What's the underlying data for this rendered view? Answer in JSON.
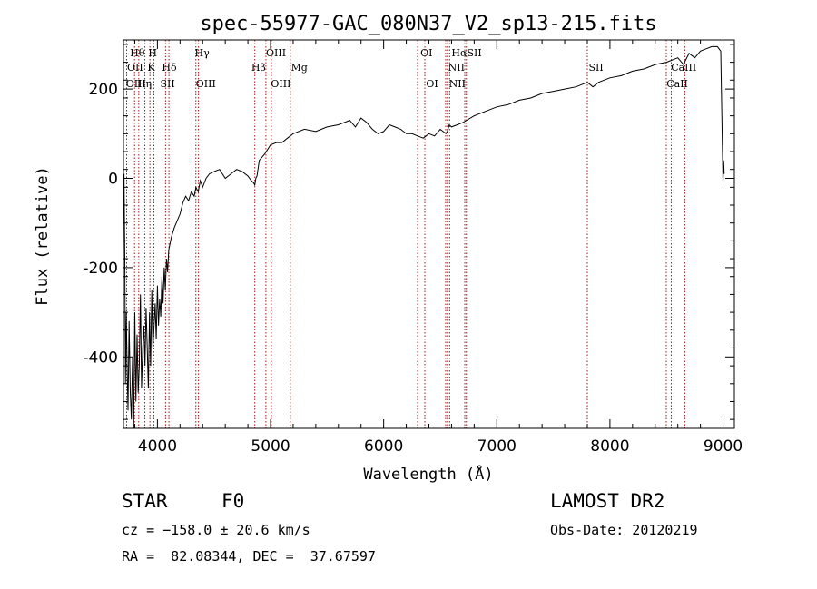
{
  "chart_data": {
    "type": "line",
    "title": "spec-55977-GAC_080N37_V2_sp13-215.fits",
    "xlabel": "Wavelength (Å)",
    "ylabel": "Flux (relative)",
    "xlim": [
      3700,
      9100
    ],
    "ylim": [
      -560,
      310
    ],
    "x_ticks": [
      "4000",
      "5000",
      "6000",
      "7000",
      "8000",
      "9000"
    ],
    "y_ticks": [
      "-400",
      "-200",
      "0",
      "200"
    ],
    "grid": false,
    "series": [
      {
        "x": [
          3700,
          3705,
          3712,
          3718,
          3725,
          3732,
          3740,
          3750,
          3760,
          3770,
          3780,
          3790,
          3800,
          3810,
          3820,
          3830,
          3840,
          3850,
          3860,
          3870,
          3880,
          3890,
          3900,
          3910,
          3920,
          3930,
          3940,
          3950,
          3960,
          3970,
          3980,
          3990,
          4000,
          4010,
          4020,
          4030,
          4040,
          4050,
          4060,
          4070,
          4080,
          4090,
          4100,
          4125,
          4150,
          4175,
          4200,
          4225,
          4250,
          4275,
          4300,
          4325,
          4340,
          4360,
          4380,
          4400,
          4430,
          4460,
          4500,
          4550,
          4600,
          4650,
          4700,
          4750,
          4800,
          4830,
          4850,
          4861,
          4870,
          4880,
          4900,
          4950,
          5000,
          5050,
          5100,
          5150,
          5200,
          5300,
          5400,
          5500,
          5600,
          5700,
          5750,
          5800,
          5850,
          5900,
          5950,
          6000,
          6050,
          6100,
          6150,
          6200,
          6250,
          6300,
          6350,
          6400,
          6450,
          6500,
          6550,
          6563,
          6580,
          6600,
          6650,
          6700,
          6800,
          6900,
          7000,
          7100,
          7200,
          7300,
          7400,
          7500,
          7600,
          7700,
          7800,
          7850,
          7900,
          8000,
          8100,
          8200,
          8300,
          8400,
          8500,
          8600,
          8650,
          8700,
          8750,
          8800,
          8850,
          8900,
          8950,
          8980,
          9000,
          9005,
          9010
        ],
        "y": [
          -30,
          10,
          -180,
          -460,
          -300,
          -420,
          -520,
          -320,
          -480,
          -540,
          -400,
          -560,
          -300,
          -500,
          -350,
          -480,
          -420,
          -260,
          -470,
          -380,
          -330,
          -420,
          -290,
          -380,
          -470,
          -300,
          -420,
          -250,
          -380,
          -330,
          -280,
          -360,
          -240,
          -330,
          -270,
          -310,
          -220,
          -280,
          -200,
          -250,
          -180,
          -210,
          -160,
          -130,
          -110,
          -95,
          -80,
          -55,
          -40,
          -50,
          -30,
          -40,
          -20,
          -30,
          -5,
          -20,
          0,
          10,
          15,
          20,
          0,
          10,
          20,
          15,
          5,
          -5,
          -10,
          -15,
          0,
          5,
          40,
          55,
          75,
          80,
          80,
          90,
          100,
          110,
          105,
          115,
          120,
          130,
          115,
          135,
          125,
          110,
          100,
          105,
          120,
          115,
          110,
          100,
          100,
          95,
          90,
          100,
          95,
          110,
          100,
          105,
          120,
          115,
          120,
          125,
          140,
          150,
          160,
          165,
          175,
          180,
          190,
          195,
          200,
          205,
          215,
          205,
          215,
          225,
          230,
          240,
          245,
          255,
          260,
          270,
          255,
          280,
          270,
          285,
          290,
          295,
          295,
          285,
          -10,
          40,
          10
        ]
      }
    ],
    "lines_top": [
      {
        "x": 3728,
        "label": "OII"
      },
      {
        "x": 3798,
        "label": "Hθ"
      },
      {
        "x": 3835,
        "label": "OIII"
      },
      {
        "x": 3889,
        "label": "Hη"
      },
      {
        "x": 3934,
        "label": "K"
      },
      {
        "x": 3969,
        "label": "H"
      },
      {
        "x": 4072,
        "label": "SII"
      },
      {
        "x": 4102,
        "label": "Hδ"
      },
      {
        "x": 4340,
        "label": "Hγ"
      },
      {
        "x": 4363,
        "label": "OIII"
      },
      {
        "x": 4861,
        "label": "Hβ"
      },
      {
        "x": 4959,
        "label": "OIII"
      },
      {
        "x": 5007,
        "label": "OIII"
      },
      {
        "x": 5175,
        "label": "Mg"
      },
      {
        "x": 6300,
        "label": "OI"
      },
      {
        "x": 6364,
        "label": "OI"
      },
      {
        "x": 6548,
        "label": "NII"
      },
      {
        "x": 6563,
        "label": "Hα"
      },
      {
        "x": 6583,
        "label": "NII"
      },
      {
        "x": 6717,
        "label": "SII"
      },
      {
        "x": 6731,
        "label": "SII"
      },
      {
        "x": 7800,
        "label": "SII"
      },
      {
        "x": 8498,
        "label": "CaII"
      },
      {
        "x": 8542,
        "label": "CaII"
      },
      {
        "x": 8662,
        "label": "CaII"
      }
    ],
    "line_label_rows": [
      {
        "x": 3758,
        "row": 1,
        "text": "Hθ"
      },
      {
        "x": 3732,
        "row": 2,
        "text": "OII"
      },
      {
        "x": 3722,
        "row": 3,
        "text": "OIII"
      },
      {
        "x": 3820,
        "row": 3,
        "text": "Hη"
      },
      {
        "x": 3920,
        "row": 1,
        "text": "H"
      },
      {
        "x": 3912,
        "row": 2,
        "text": "K"
      },
      {
        "x": 4040,
        "row": 2,
        "text": "Hδ"
      },
      {
        "x": 4025,
        "row": 3,
        "text": "SII"
      },
      {
        "x": 4330,
        "row": 1,
        "text": "Hγ"
      },
      {
        "x": 4340,
        "row": 3,
        "text": "OIII"
      },
      {
        "x": 4960,
        "row": 1,
        "text": "OIII"
      },
      {
        "x": 4830,
        "row": 2,
        "text": "Hβ"
      },
      {
        "x": 5003,
        "row": 3,
        "text": "OIII"
      },
      {
        "x": 5180,
        "row": 2,
        "text": "Mg"
      },
      {
        "x": 6325,
        "row": 1,
        "text": "OI"
      },
      {
        "x": 6375,
        "row": 3,
        "text": "OI"
      },
      {
        "x": 6600,
        "row": 1,
        "text": "HαSII"
      },
      {
        "x": 6570,
        "row": 2,
        "text": "NII"
      },
      {
        "x": 6578,
        "row": 3,
        "text": "NII"
      },
      {
        "x": 7812,
        "row": 2,
        "text": "SII"
      },
      {
        "x": 8540,
        "row": 2,
        "text": "CaIII"
      },
      {
        "x": 8500,
        "row": 3,
        "text": "CaII"
      }
    ]
  },
  "info": {
    "class": "STAR",
    "subclass": "F0",
    "cz": "cz = −158.0 ± 20.6 km/s",
    "radec": "RA =  82.08344, DEC =  37.67597",
    "survey": "LAMOST DR2",
    "obs_date": "Obs-Date: 20120219"
  },
  "colors": {
    "axis": "#000000",
    "spectrum": "#000000",
    "line_marker": "#a01818"
  }
}
